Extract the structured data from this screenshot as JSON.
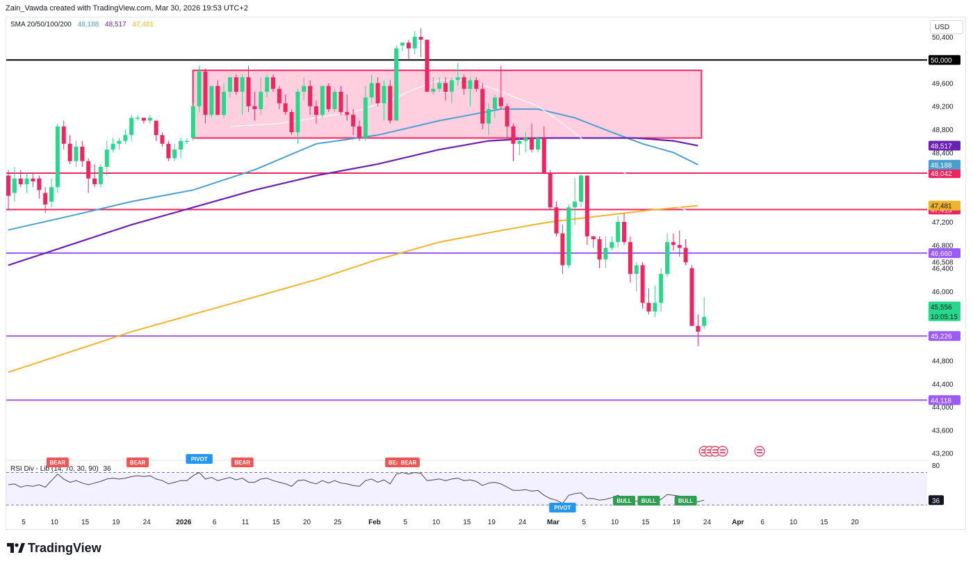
{
  "header": {
    "attribution": "Zain_Vawda created with TradingView.com, Mar 30, 2026 19:53 UTC+2"
  },
  "legend": {
    "sma_label": "SMA 20/50/100/200",
    "sma_values": [
      {
        "value": "48,188",
        "color": "#4a9fd1"
      },
      {
        "value": "48,517",
        "color": "#6a1fb5"
      },
      {
        "value": "47,481",
        "color": "#f0b429"
      }
    ],
    "rsi_label": "RSI Div - Lib (14, 70, 30, 90)",
    "rsi_value": "36"
  },
  "currency_button": "USD",
  "logo_text": "TradingView",
  "colors": {
    "bull": "#26d98a",
    "bear": "#f0245f",
    "box_fill": "#ffcfe0",
    "box_border": "#f0245f",
    "sma20": "#4a9fd1",
    "sma50_inner": "#ffffff",
    "sma100": "#6a1fb5",
    "sma200": "#f0b429",
    "line_50000": "#000000",
    "level_red": "#f0245f",
    "level_purple": "#9b59ff"
  },
  "chart_data": {
    "type": "candlestick",
    "y_axis": {
      "ylim": [
        43100,
        50700
      ],
      "tick_labels": [
        "50,400",
        "49,600",
        "49,200",
        "48,800",
        "48,400",
        "47,200",
        "46,800",
        "46,508",
        "46,400",
        "46,000",
        "45,600",
        "44,800",
        "44,400",
        "44,000",
        "43,600",
        "43,200"
      ]
    },
    "x_axis": {
      "tick_labels": [
        "5",
        "10",
        "15",
        "19",
        "24",
        "2026",
        "6",
        "11",
        "15",
        "20",
        "25",
        "Feb",
        "5",
        "10",
        "15",
        "19",
        "24",
        "Mar",
        "5",
        "10",
        "15",
        "19",
        "24",
        "Apr",
        "6",
        "10",
        "15",
        "20"
      ]
    },
    "candles": [
      {
        "o": 48000,
        "h": 48100,
        "l": 47400,
        "c": 47650
      },
      {
        "o": 47700,
        "h": 48150,
        "l": 47550,
        "c": 47950
      },
      {
        "o": 47950,
        "h": 48100,
        "l": 47800,
        "c": 47850
      },
      {
        "o": 47850,
        "h": 48050,
        "l": 47700,
        "c": 47950
      },
      {
        "o": 47950,
        "h": 48050,
        "l": 47800,
        "c": 47900
      },
      {
        "o": 47950,
        "h": 48000,
        "l": 47600,
        "c": 47750
      },
      {
        "o": 47700,
        "h": 47800,
        "l": 47350,
        "c": 47500
      },
      {
        "o": 47550,
        "h": 47950,
        "l": 47450,
        "c": 47800
      },
      {
        "o": 47800,
        "h": 48900,
        "l": 47700,
        "c": 48850
      },
      {
        "o": 48850,
        "h": 48950,
        "l": 48450,
        "c": 48550
      },
      {
        "o": 48550,
        "h": 48700,
        "l": 48200,
        "c": 48250
      },
      {
        "o": 48250,
        "h": 48600,
        "l": 48150,
        "c": 48500
      },
      {
        "o": 48500,
        "h": 48600,
        "l": 48150,
        "c": 48250
      },
      {
        "o": 48250,
        "h": 48300,
        "l": 47700,
        "c": 47950
      },
      {
        "o": 47950,
        "h": 48200,
        "l": 47800,
        "c": 47850
      },
      {
        "o": 47850,
        "h": 48200,
        "l": 47800,
        "c": 48150
      },
      {
        "o": 48150,
        "h": 48600,
        "l": 48000,
        "c": 48450
      },
      {
        "o": 48450,
        "h": 48650,
        "l": 48400,
        "c": 48550
      },
      {
        "o": 48550,
        "h": 48650,
        "l": 48450,
        "c": 48600
      },
      {
        "o": 48600,
        "h": 48800,
        "l": 48550,
        "c": 48700
      },
      {
        "o": 48700,
        "h": 49050,
        "l": 48600,
        "c": 49000
      },
      {
        "o": 49000,
        "h": 49050,
        "l": 48950,
        "c": 49000
      },
      {
        "o": 49000,
        "h": 49000,
        "l": 48900,
        "c": 48950
      },
      {
        "o": 48950,
        "h": 49050,
        "l": 48900,
        "c": 49000
      },
      {
        "o": 48950,
        "h": 48950,
        "l": 48600,
        "c": 48700
      },
      {
        "o": 48700,
        "h": 48750,
        "l": 48500,
        "c": 48550
      },
      {
        "o": 48550,
        "h": 48600,
        "l": 48250,
        "c": 48300
      },
      {
        "o": 48300,
        "h": 48550,
        "l": 48250,
        "c": 48450
      },
      {
        "o": 48450,
        "h": 48650,
        "l": 48300,
        "c": 48600
      },
      {
        "o": 48600,
        "h": 48650,
        "l": 48550,
        "c": 48600
      },
      {
        "o": 48650,
        "h": 49250,
        "l": 48600,
        "c": 49200
      },
      {
        "o": 49200,
        "h": 49900,
        "l": 49100,
        "c": 49800
      },
      {
        "o": 49800,
        "h": 49850,
        "l": 48900,
        "c": 49050
      },
      {
        "o": 49050,
        "h": 49550,
        "l": 49000,
        "c": 49550
      },
      {
        "o": 49550,
        "h": 49650,
        "l": 49050,
        "c": 49050
      },
      {
        "o": 49050,
        "h": 49600,
        "l": 49000,
        "c": 49450
      },
      {
        "o": 49450,
        "h": 49700,
        "l": 49350,
        "c": 49700
      },
      {
        "o": 49700,
        "h": 49750,
        "l": 49400,
        "c": 49450
      },
      {
        "o": 49450,
        "h": 49750,
        "l": 49050,
        "c": 49700
      },
      {
        "o": 49700,
        "h": 49900,
        "l": 49100,
        "c": 49200
      },
      {
        "o": 49200,
        "h": 49450,
        "l": 48950,
        "c": 49150
      },
      {
        "o": 49150,
        "h": 49700,
        "l": 49050,
        "c": 49450
      },
      {
        "o": 49450,
        "h": 49750,
        "l": 49350,
        "c": 49700
      },
      {
        "o": 49700,
        "h": 49750,
        "l": 49450,
        "c": 49500
      },
      {
        "o": 49500,
        "h": 49550,
        "l": 49150,
        "c": 49250
      },
      {
        "o": 49250,
        "h": 49400,
        "l": 49050,
        "c": 49100
      },
      {
        "o": 49100,
        "h": 49150,
        "l": 48700,
        "c": 48750
      },
      {
        "o": 48750,
        "h": 49500,
        "l": 48550,
        "c": 49450
      },
      {
        "o": 49450,
        "h": 49700,
        "l": 49300,
        "c": 49550
      },
      {
        "o": 49550,
        "h": 49650,
        "l": 49050,
        "c": 49200
      },
      {
        "o": 49200,
        "h": 49300,
        "l": 48900,
        "c": 49050
      },
      {
        "o": 49050,
        "h": 49550,
        "l": 49000,
        "c": 49550
      },
      {
        "o": 49550,
        "h": 49600,
        "l": 49100,
        "c": 49150
      },
      {
        "o": 49150,
        "h": 49500,
        "l": 49100,
        "c": 49450
      },
      {
        "o": 49450,
        "h": 49550,
        "l": 49050,
        "c": 49100
      },
      {
        "o": 49100,
        "h": 49400,
        "l": 48950,
        "c": 49050
      },
      {
        "o": 49050,
        "h": 49150,
        "l": 48700,
        "c": 48850
      },
      {
        "o": 48850,
        "h": 48950,
        "l": 48600,
        "c": 48650
      },
      {
        "o": 48650,
        "h": 49550,
        "l": 48600,
        "c": 49350
      },
      {
        "o": 49350,
        "h": 49750,
        "l": 49250,
        "c": 49600
      },
      {
        "o": 49600,
        "h": 49700,
        "l": 49200,
        "c": 49250
      },
      {
        "o": 49250,
        "h": 49650,
        "l": 48950,
        "c": 49550
      },
      {
        "o": 49550,
        "h": 49650,
        "l": 48900,
        "c": 48950
      },
      {
        "o": 48950,
        "h": 50250,
        "l": 48950,
        "c": 50200
      },
      {
        "o": 50250,
        "h": 50300,
        "l": 50150,
        "c": 50300
      },
      {
        "o": 50300,
        "h": 50350,
        "l": 50000,
        "c": 50200
      },
      {
        "o": 50200,
        "h": 50500,
        "l": 50100,
        "c": 50400
      },
      {
        "o": 50400,
        "h": 50550,
        "l": 50050,
        "c": 50350
      },
      {
        "o": 50350,
        "h": 50350,
        "l": 49450,
        "c": 49450
      },
      {
        "o": 49450,
        "h": 49700,
        "l": 49400,
        "c": 49500
      },
      {
        "o": 49500,
        "h": 49700,
        "l": 49450,
        "c": 49600
      },
      {
        "o": 49600,
        "h": 49700,
        "l": 49300,
        "c": 49450
      },
      {
        "o": 49450,
        "h": 49700,
        "l": 49250,
        "c": 49650
      },
      {
        "o": 49650,
        "h": 49950,
        "l": 49550,
        "c": 49700
      },
      {
        "o": 49700,
        "h": 49750,
        "l": 49400,
        "c": 49500
      },
      {
        "o": 49500,
        "h": 49700,
        "l": 49200,
        "c": 49650
      },
      {
        "o": 49650,
        "h": 49700,
        "l": 49450,
        "c": 49500
      },
      {
        "o": 49500,
        "h": 49600,
        "l": 48800,
        "c": 48900
      },
      {
        "o": 48900,
        "h": 49250,
        "l": 48700,
        "c": 49150
      },
      {
        "o": 49150,
        "h": 49400,
        "l": 49000,
        "c": 49350
      },
      {
        "o": 49350,
        "h": 49900,
        "l": 49150,
        "c": 49200
      },
      {
        "o": 49200,
        "h": 49250,
        "l": 48650,
        "c": 48850
      },
      {
        "o": 48850,
        "h": 48900,
        "l": 48250,
        "c": 48550
      },
      {
        "o": 48550,
        "h": 48650,
        "l": 48350,
        "c": 48600
      },
      {
        "o": 48600,
        "h": 48750,
        "l": 48400,
        "c": 48650
      },
      {
        "o": 48650,
        "h": 48900,
        "l": 48400,
        "c": 48450
      },
      {
        "o": 48450,
        "h": 48650,
        "l": 48400,
        "c": 48650
      },
      {
        "o": 48650,
        "h": 48850,
        "l": 48050,
        "c": 48050
      },
      {
        "o": 48050,
        "h": 48100,
        "l": 47400,
        "c": 47450
      },
      {
        "o": 47450,
        "h": 47550,
        "l": 46950,
        "c": 47000
      },
      {
        "o": 47000,
        "h": 47150,
        "l": 46300,
        "c": 46450
      },
      {
        "o": 46450,
        "h": 47500,
        "l": 46400,
        "c": 47450
      },
      {
        "o": 47450,
        "h": 47950,
        "l": 47150,
        "c": 47550
      },
      {
        "o": 47550,
        "h": 48050,
        "l": 47450,
        "c": 48000
      },
      {
        "o": 48000,
        "h": 48000,
        "l": 46800,
        "c": 46950
      },
      {
        "o": 46950,
        "h": 46950,
        "l": 46750,
        "c": 46900
      },
      {
        "o": 46900,
        "h": 46950,
        "l": 46400,
        "c": 46550
      },
      {
        "o": 46550,
        "h": 46950,
        "l": 46400,
        "c": 46750
      },
      {
        "o": 46750,
        "h": 46950,
        "l": 46700,
        "c": 46850
      },
      {
        "o": 46850,
        "h": 47300,
        "l": 46750,
        "c": 47200
      },
      {
        "o": 47200,
        "h": 47350,
        "l": 46800,
        "c": 46850
      },
      {
        "o": 46850,
        "h": 46950,
        "l": 46150,
        "c": 46300
      },
      {
        "o": 46300,
        "h": 46500,
        "l": 46000,
        "c": 46450
      },
      {
        "o": 46450,
        "h": 46500,
        "l": 45700,
        "c": 45800
      },
      {
        "o": 45800,
        "h": 46050,
        "l": 45600,
        "c": 45650
      },
      {
        "o": 45650,
        "h": 46100,
        "l": 45550,
        "c": 45800
      },
      {
        "o": 45800,
        "h": 46400,
        "l": 45650,
        "c": 46300
      },
      {
        "o": 46300,
        "h": 47000,
        "l": 46250,
        "c": 46850
      },
      {
        "o": 46850,
        "h": 47000,
        "l": 46700,
        "c": 46800
      },
      {
        "o": 46800,
        "h": 47050,
        "l": 46600,
        "c": 46750
      },
      {
        "o": 46750,
        "h": 46900,
        "l": 46450,
        "c": 46500
      },
      {
        "o": 46400,
        "h": 46450,
        "l": 45400,
        "c": 45400
      },
      {
        "o": 45400,
        "h": 45600,
        "l": 45050,
        "c": 45300
      },
      {
        "o": 45400,
        "h": 45900,
        "l": 45350,
        "c": 45556
      }
    ],
    "sma_20_50_100_200": {
      "sma20": [
        [
          0,
          47060
        ],
        [
          10,
          47300
        ],
        [
          20,
          47550
        ],
        [
          30,
          47750
        ],
        [
          40,
          48100
        ],
        [
          50,
          48550
        ],
        [
          60,
          48700
        ],
        [
          70,
          48950
        ],
        [
          75,
          49050
        ],
        [
          80,
          49150
        ],
        [
          86,
          49150
        ],
        [
          92,
          49000
        ],
        [
          98,
          48750
        ],
        [
          103,
          48550
        ],
        [
          108,
          48400
        ],
        [
          112,
          48188
        ]
      ],
      "sma50": [
        [
          36,
          48850
        ],
        [
          44,
          48900
        ],
        [
          50,
          49000
        ],
        [
          56,
          49100
        ],
        [
          62,
          49300
        ],
        [
          66,
          49500
        ],
        [
          70,
          49650
        ],
        [
          75,
          49650
        ],
        [
          80,
          49450
        ],
        [
          86,
          49200
        ],
        [
          90,
          48900
        ],
        [
          96,
          48400
        ],
        [
          100,
          48050
        ],
        [
          105,
          47700
        ],
        [
          108,
          47500
        ],
        [
          112,
          47300
        ]
      ],
      "sma100": [
        [
          0,
          46450
        ],
        [
          10,
          46800
        ],
        [
          20,
          47150
        ],
        [
          30,
          47450
        ],
        [
          40,
          47750
        ],
        [
          50,
          48000
        ],
        [
          60,
          48200
        ],
        [
          70,
          48450
        ],
        [
          78,
          48600
        ],
        [
          86,
          48650
        ],
        [
          94,
          48650
        ],
        [
          102,
          48650
        ],
        [
          108,
          48600
        ],
        [
          112,
          48517
        ]
      ],
      "sma200": [
        [
          0,
          44600
        ],
        [
          10,
          44950
        ],
        [
          20,
          45300
        ],
        [
          30,
          45600
        ],
        [
          40,
          45900
        ],
        [
          50,
          46200
        ],
        [
          60,
          46550
        ],
        [
          70,
          46850
        ],
        [
          80,
          47050
        ],
        [
          88,
          47200
        ],
        [
          96,
          47300
        ],
        [
          104,
          47400
        ],
        [
          112,
          47481
        ]
      ]
    },
    "levels": [
      {
        "value": 50000,
        "label": "50,000",
        "color": "#000000"
      },
      {
        "value": 48042,
        "label": "48,042",
        "color": "#f0245f"
      },
      {
        "value": 47413,
        "label": "47,413",
        "color": "#f0245f"
      },
      {
        "value": 46660,
        "label": "46,660",
        "color": "#9b59ff"
      },
      {
        "value": 45226,
        "label": "45,226",
        "color": "#9b59ff"
      },
      {
        "value": 44118,
        "label": "44,118",
        "color": "#9b59ff"
      }
    ],
    "sma_price_tags": [
      {
        "value": 48517,
        "label": "48,517",
        "color": "#6a1fb5"
      },
      {
        "value": 48188,
        "label": "48,188",
        "color": "#4a9fd1"
      },
      {
        "value": 47481,
        "label": "47,481",
        "color": "#f0b429"
      }
    ],
    "current_price": {
      "value": 45556,
      "label": "45,556",
      "countdown": "10:05:15",
      "color": "#26d98a"
    },
    "range_box": {
      "from_candle": 31,
      "to_candle": 112,
      "top": 49820,
      "bottom": 48650
    },
    "rsi": {
      "ylim": [
        20,
        85
      ],
      "levels": [
        70,
        30
      ],
      "visible_level_label": "80",
      "current": "36",
      "values": [
        55,
        56,
        52,
        54,
        53,
        55,
        52,
        60,
        68,
        62,
        58,
        60,
        57,
        55,
        57,
        59,
        62,
        63,
        62,
        63,
        65,
        66,
        65,
        66,
        62,
        60,
        56,
        58,
        60,
        60,
        66,
        70,
        62,
        64,
        60,
        62,
        64,
        61,
        63,
        58,
        58,
        62,
        63,
        60,
        58,
        56,
        53,
        60,
        61,
        58,
        56,
        60,
        57,
        60,
        57,
        56,
        54,
        53,
        60,
        62,
        58,
        61,
        56,
        68,
        70,
        68,
        70,
        69,
        60,
        61,
        62,
        60,
        62,
        63,
        60,
        61,
        59,
        54,
        57,
        58,
        56,
        52,
        48,
        48,
        49,
        47,
        48,
        42,
        38,
        36,
        32,
        42,
        44,
        45,
        38,
        38,
        36,
        37,
        39,
        42,
        38,
        33,
        35,
        32,
        32,
        33,
        37,
        43,
        42,
        41,
        38,
        32,
        34,
        36
      ],
      "markers": [
        {
          "candle": 8,
          "label": "BEAR",
          "type": "bear"
        },
        {
          "candle": 21,
          "label": "BEAR",
          "type": "bear"
        },
        {
          "candle": 31,
          "label": "PIVOT",
          "type": "pivot-high"
        },
        {
          "candle": 38,
          "label": "BEAR",
          "type": "bear"
        },
        {
          "candle": 63,
          "label": "BEAR",
          "type": "bear"
        },
        {
          "candle": 65,
          "label": "BEAR",
          "type": "bear"
        },
        {
          "candle": 90,
          "label": "PIVOT",
          "type": "pivot-low"
        },
        {
          "candle": 100,
          "label": "BULL",
          "type": "bull"
        },
        {
          "candle": 104,
          "label": "BULL",
          "type": "bull"
        },
        {
          "candle": 110,
          "label": "BULL",
          "type": "bull"
        }
      ]
    },
    "event_icons": [
      {
        "candle": 113,
        "count": 3
      },
      {
        "candle": 116,
        "count": 1
      },
      {
        "candle": 122,
        "count": 1
      }
    ]
  }
}
